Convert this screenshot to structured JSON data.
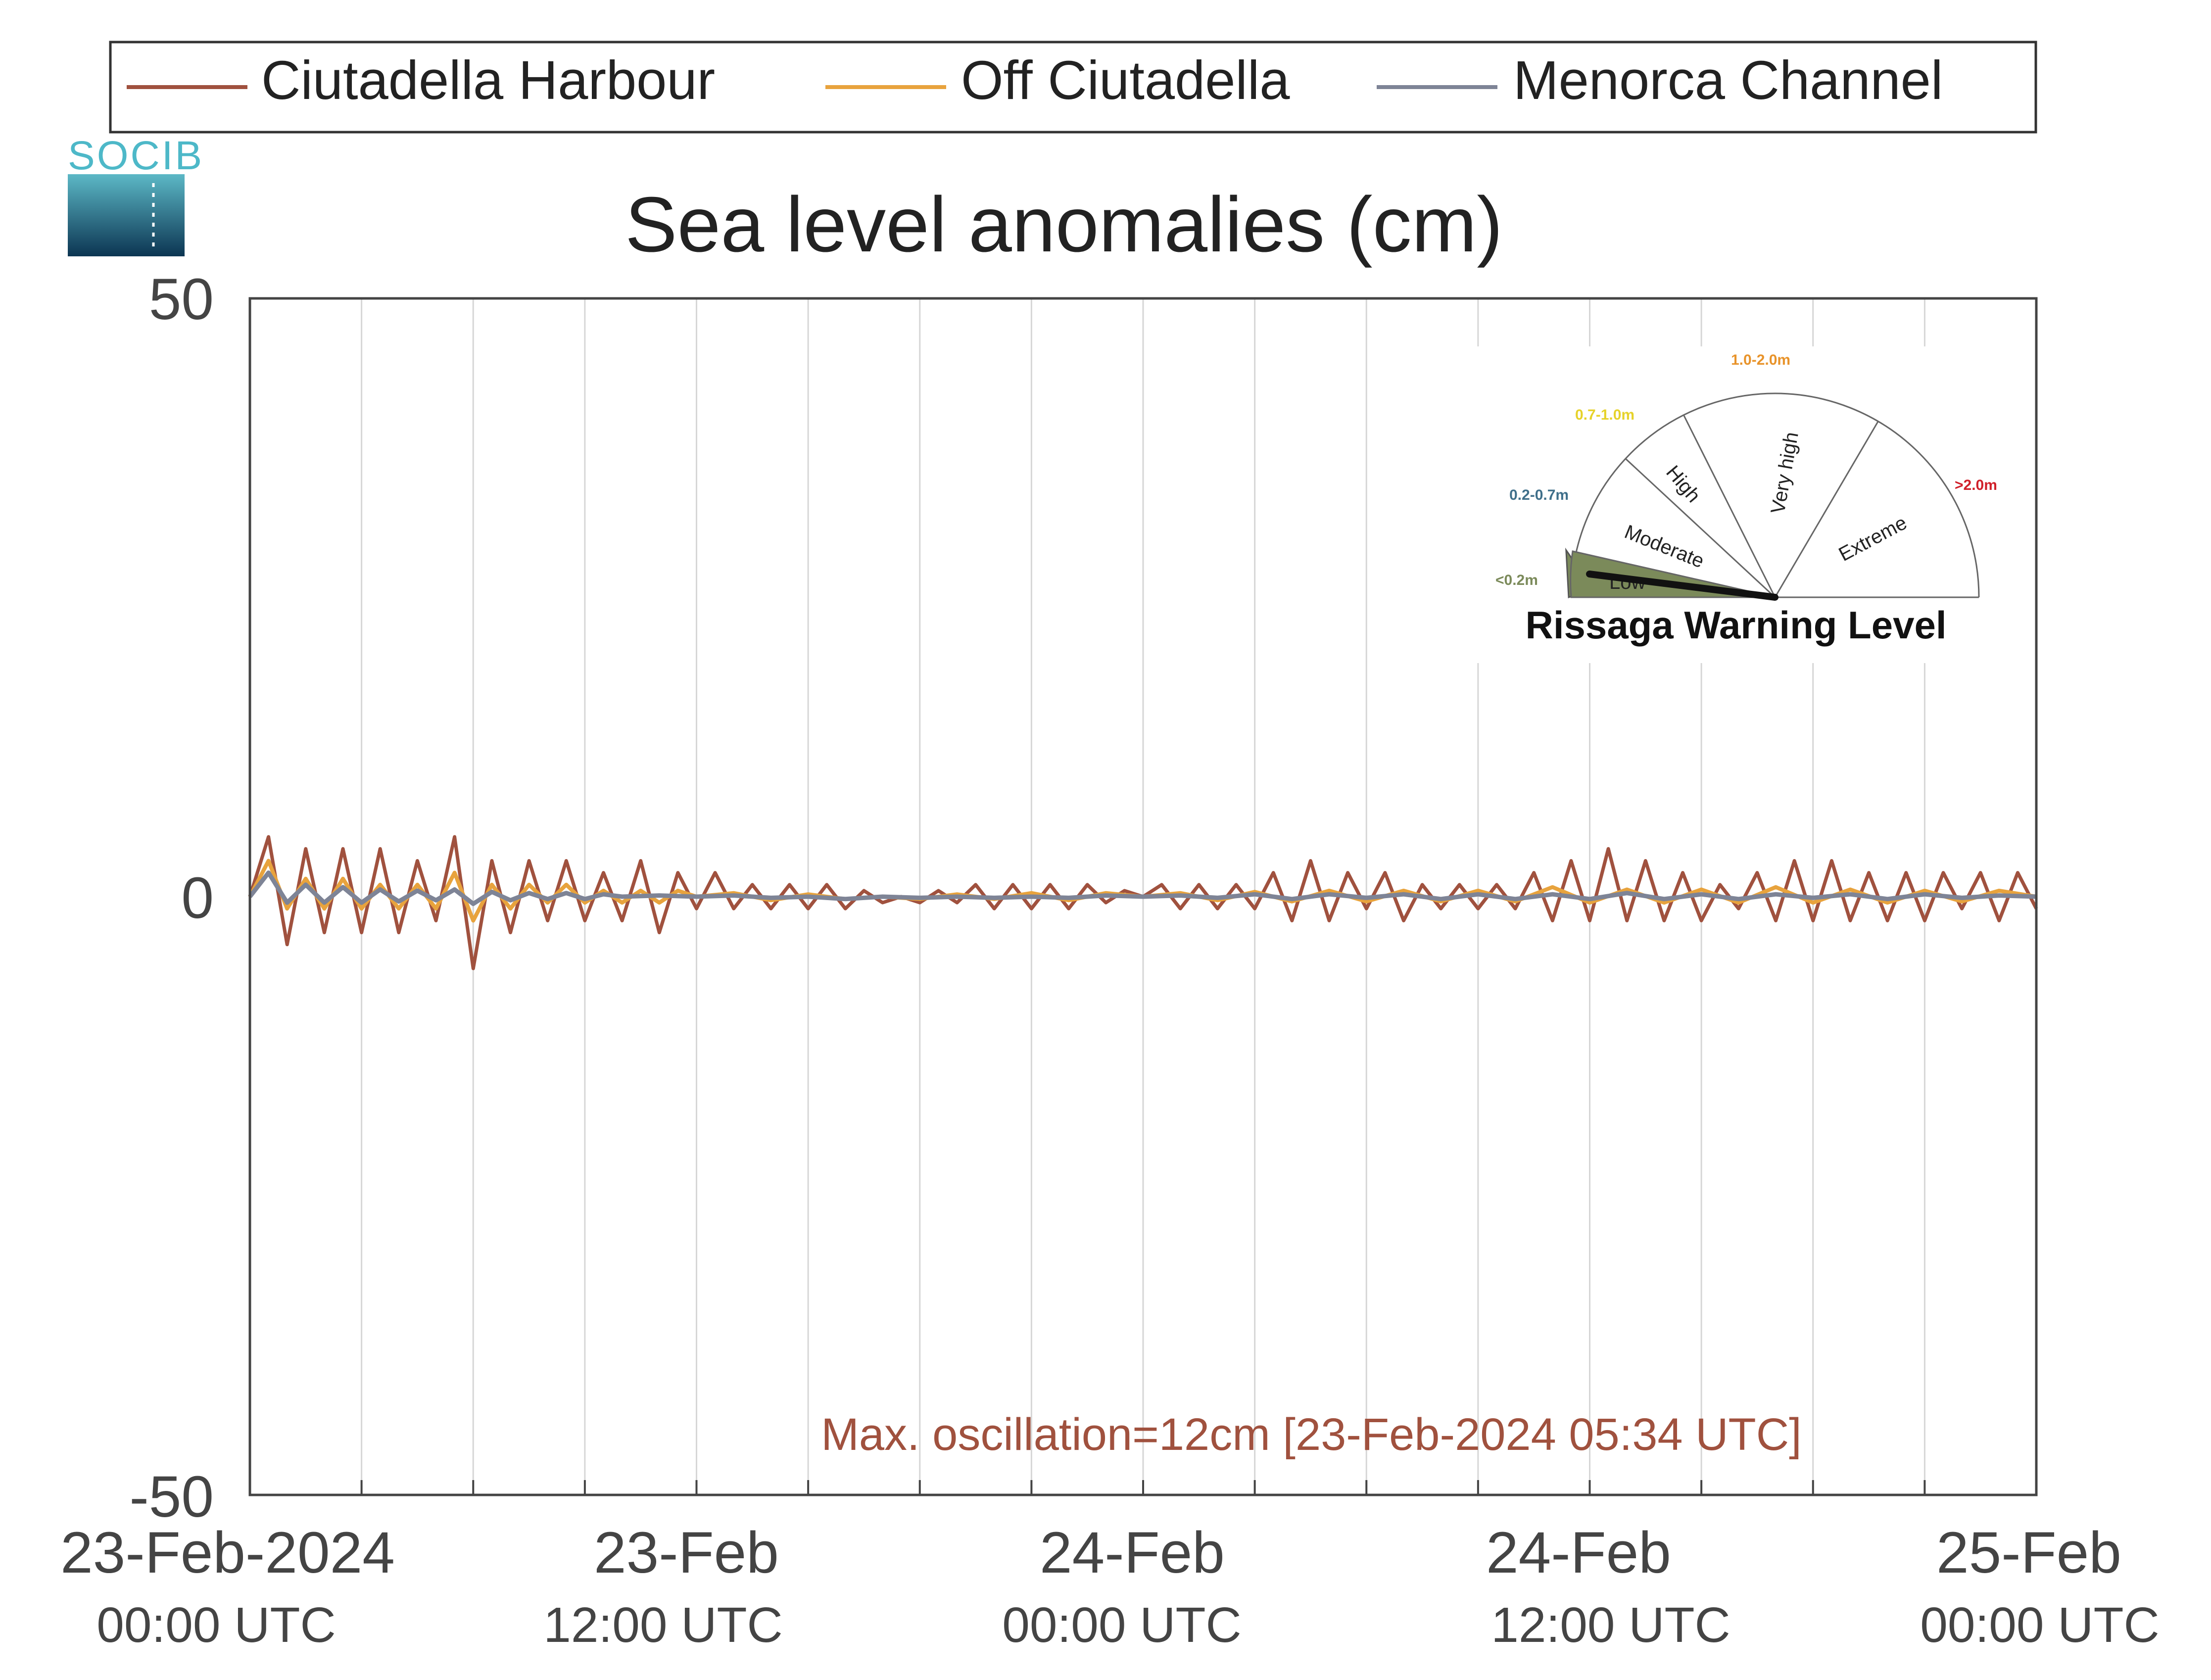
{
  "logo_text": "SOCIB",
  "chart_data": {
    "type": "line",
    "title": "Sea level anomalies (cm)",
    "xlabel": "",
    "ylabel": "",
    "ylim": [
      -50,
      50
    ],
    "yticks": [
      "50",
      "0",
      "-50"
    ],
    "xlim_hours": [
      0,
      48
    ],
    "xtick_labels": [
      {
        "date": "23-Feb-2024",
        "time": "00:00 UTC"
      },
      {
        "date": "23-Feb",
        "time": "12:00 UTC"
      },
      {
        "date": "24-Feb",
        "time": "00:00 UTC"
      },
      {
        "date": "24-Feb",
        "time": "12:00 UTC"
      },
      {
        "date": "25-Feb",
        "time": "00:00 UTC"
      }
    ],
    "grid": "vertical lines every 3 hours",
    "legend": "top, horizontal",
    "series": [
      {
        "name": "Ciutadella Harbour",
        "color": "#a0513e",
        "x": [
          0,
          0.5,
          1,
          1.5,
          2,
          2.5,
          3,
          3.5,
          4,
          4.5,
          5,
          5.5,
          6,
          6.5,
          7,
          7.5,
          8,
          8.5,
          9,
          9.5,
          10,
          10.5,
          11,
          11.5,
          12,
          12.5,
          13,
          13.5,
          14,
          14.5,
          15,
          15.5,
          16,
          16.5,
          17,
          17.5,
          18,
          18.5,
          19,
          19.5,
          20,
          20.5,
          21,
          21.5,
          22,
          22.5,
          23,
          23.5,
          24,
          24.5,
          25,
          25.5,
          26,
          26.5,
          27,
          27.5,
          28,
          28.5,
          29,
          29.5,
          30,
          30.5,
          31,
          31.5,
          32,
          32.5,
          33,
          33.5,
          34,
          34.5,
          35,
          35.5,
          36,
          36.5,
          37,
          37.5,
          38,
          38.5,
          39,
          39.5,
          40,
          40.5,
          41,
          41.5,
          42,
          42.5,
          43,
          43.5,
          44,
          44.5,
          45,
          45.5,
          46,
          46.5,
          47,
          47.5,
          48
        ],
        "y": [
          0,
          5,
          -4,
          4,
          -3,
          4,
          -3,
          4,
          -3,
          3,
          -2,
          5,
          -6,
          3,
          -3,
          3,
          -2,
          3,
          -2,
          2,
          -2,
          3,
          -3,
          2,
          -1,
          2,
          -1,
          1,
          -1,
          1,
          -1,
          1,
          -1,
          0.5,
          -0.5,
          0,
          -0.5,
          0.5,
          -0.5,
          1,
          -1,
          1,
          -1,
          1,
          -1,
          1,
          -0.5,
          0.5,
          0,
          1,
          -1,
          1,
          -1,
          1,
          -1,
          2,
          -2,
          3,
          -2,
          2,
          -1,
          2,
          -2,
          1,
          -1,
          1,
          -1,
          1,
          -1,
          2,
          -2,
          3,
          -2,
          4,
          -2,
          3,
          -2,
          2,
          -2,
          1,
          -1,
          2,
          -2,
          3,
          -2,
          3,
          -2,
          2,
          -2,
          2,
          -2,
          2,
          -1,
          2,
          -2,
          2,
          -1
        ]
      },
      {
        "name": "Off Ciutadella",
        "color": "#e8a33d",
        "x": [
          0,
          0.5,
          1,
          1.5,
          2,
          2.5,
          3,
          3.5,
          4,
          4.5,
          5,
          5.5,
          6,
          6.5,
          7,
          7.5,
          8,
          8.5,
          9,
          9.5,
          10,
          10.5,
          11,
          11.5,
          12,
          13,
          14,
          15,
          16,
          17,
          18,
          19,
          20,
          21,
          22,
          23,
          24,
          25,
          26,
          27,
          28,
          29,
          30,
          31,
          32,
          33,
          34,
          35,
          36,
          37,
          38,
          39,
          40,
          41,
          42,
          43,
          44,
          45,
          46,
          47,
          48
        ],
        "y": [
          0,
          3,
          -1,
          1.5,
          -1,
          1.5,
          -1,
          1,
          -1,
          1,
          -1,
          2,
          -2,
          1,
          -1,
          1,
          -0.5,
          1,
          -0.5,
          0.5,
          -0.5,
          0.5,
          -0.5,
          0.5,
          0,
          0.3,
          -0.3,
          0.2,
          -0.2,
          0,
          -0.2,
          0.2,
          -0.2,
          0.3,
          -0.3,
          0.3,
          0,
          0.3,
          -0.3,
          0.4,
          -0.4,
          0.5,
          -0.4,
          0.5,
          -0.4,
          0.5,
          -0.4,
          0.8,
          -0.5,
          0.6,
          -0.5,
          0.6,
          -0.5,
          0.8,
          -0.5,
          0.6,
          -0.5,
          0.5,
          -0.4,
          0.5,
          0
        ]
      },
      {
        "name": "Menorca Channel",
        "color": "#7e8496",
        "x": [
          0,
          0.5,
          1,
          1.5,
          2,
          2.5,
          3,
          3.5,
          4,
          4.5,
          5,
          5.5,
          6,
          6.5,
          7,
          7.5,
          8,
          8.5,
          9,
          9.5,
          10,
          11,
          12,
          13,
          14,
          15,
          16,
          17,
          18,
          19,
          20,
          21,
          22,
          23,
          24,
          25,
          26,
          27,
          28,
          29,
          30,
          31,
          32,
          33,
          34,
          35,
          36,
          37,
          38,
          39,
          40,
          41,
          42,
          43,
          44,
          45,
          46,
          47,
          48
        ],
        "y": [
          0,
          2,
          -0.5,
          1,
          -0.5,
          0.8,
          -0.5,
          0.6,
          -0.4,
          0.5,
          -0.3,
          0.6,
          -0.6,
          0.4,
          -0.3,
          0.3,
          -0.2,
          0.3,
          -0.2,
          0.2,
          0,
          0.1,
          0,
          0.1,
          -0.1,
          0,
          -0.2,
          0,
          -0.1,
          0,
          -0.1,
          0,
          -0.1,
          0.1,
          0,
          0.1,
          -0.1,
          0.2,
          -0.2,
          0.2,
          -0.1,
          0.2,
          -0.2,
          0.2,
          -0.2,
          0.2,
          -0.2,
          0.3,
          -0.2,
          0.2,
          -0.2,
          0.2,
          -0.1,
          0.2,
          -0.2,
          0.2,
          -0.1,
          0.1,
          0
        ]
      }
    ],
    "annotations": [
      "Max. oscillation=12cm [23-Feb-2024 05:34 UTC]"
    ],
    "gauge": {
      "title": "Rissaga Warning Level",
      "current_level": "Low",
      "needle_value_m": 0.12,
      "sectors": [
        {
          "label": "Low",
          "range": "<0.2m",
          "color": "#7b8a5a"
        },
        {
          "label": "Moderate",
          "range": "0.2-0.7m",
          "color": "#3f6f8a"
        },
        {
          "label": "High",
          "range": "0.7-1.0m",
          "color": "#e6d22a"
        },
        {
          "label": "Very high",
          "range": "1.0-2.0m",
          "color": "#e8932a"
        },
        {
          "label": "Extreme",
          "range": ">2.0m",
          "color": "#d0202a"
        }
      ]
    }
  }
}
